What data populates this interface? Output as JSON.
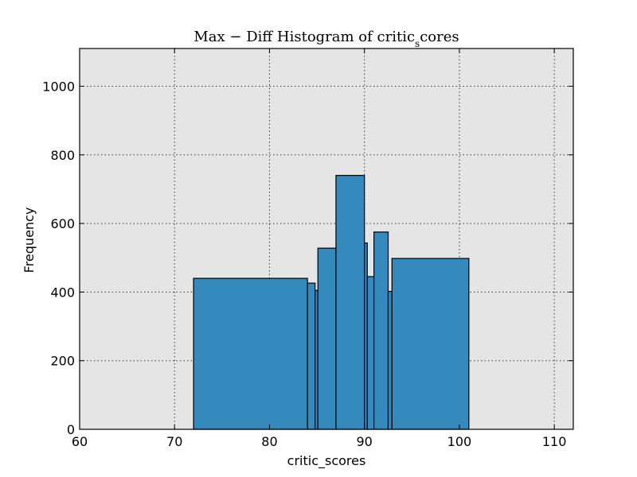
{
  "chart_data": {
    "type": "bar",
    "title": "Max − Diff Histogram of critic",
    "title_subscript": "s",
    "title_suffix": "cores",
    "xlabel": "critic_scores",
    "ylabel": "Frequency",
    "xlim": [
      60,
      112
    ],
    "ylim": [
      0,
      1110
    ],
    "x_ticks": [
      60,
      70,
      80,
      90,
      100,
      110
    ],
    "y_ticks": [
      0,
      200,
      400,
      600,
      800,
      1000
    ],
    "grid": true,
    "bar_color": "#348abd",
    "background_color": "#e5e5e5",
    "bins": [
      {
        "x0": 72.0,
        "x1": 84.0,
        "value": 440
      },
      {
        "x0": 84.0,
        "x1": 84.8,
        "value": 426
      },
      {
        "x0": 84.8,
        "x1": 85.1,
        "value": 405
      },
      {
        "x0": 85.1,
        "x1": 87.0,
        "value": 528
      },
      {
        "x0": 87.0,
        "x1": 90.0,
        "value": 740
      },
      {
        "x0": 90.0,
        "x1": 90.3,
        "value": 543
      },
      {
        "x0": 90.3,
        "x1": 91.0,
        "value": 445
      },
      {
        "x0": 91.0,
        "x1": 92.5,
        "value": 575
      },
      {
        "x0": 92.5,
        "x1": 92.9,
        "value": 402
      },
      {
        "x0": 92.9,
        "x1": 101.0,
        "value": 498
      }
    ]
  }
}
